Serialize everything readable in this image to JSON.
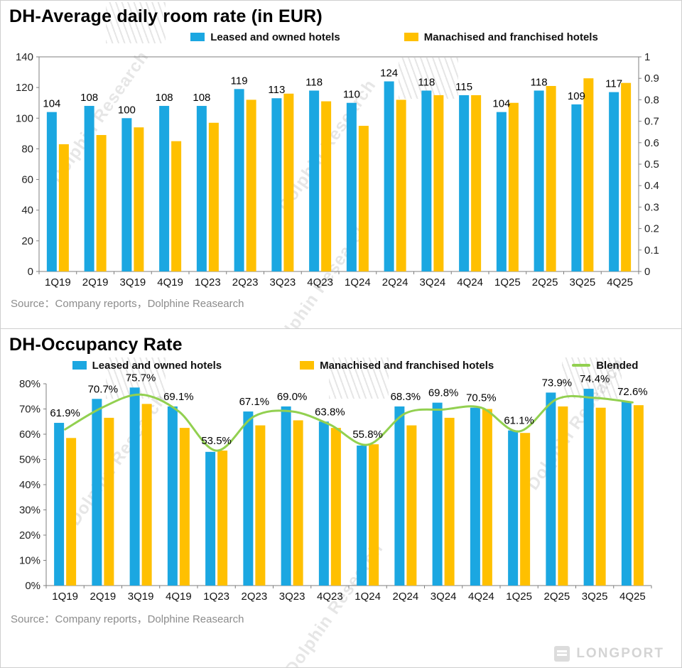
{
  "watermark_text": "Dolphin Research",
  "logo_text": "LONGPORT",
  "chart_data": [
    {
      "type": "bar",
      "title": "DH-Average daily room rate (in EUR)",
      "source": "Source：Company reports，Dolphine Reasearch",
      "categories": [
        "1Q19",
        "2Q19",
        "3Q19",
        "4Q19",
        "1Q23",
        "2Q23",
        "3Q23",
        "4Q23",
        "1Q24",
        "2Q24",
        "3Q24",
        "4Q24",
        "1Q25",
        "2Q25",
        "3Q25",
        "4Q25"
      ],
      "series": [
        {
          "name": "Leased and owned hotels",
          "color": "#1BA7E1",
          "values": [
            104,
            108,
            100,
            108,
            108,
            119,
            113,
            118,
            110,
            124,
            118,
            115,
            104,
            118,
            109,
            117
          ]
        },
        {
          "name": "Manachised and franchised hotels",
          "color": "#FFC000",
          "values": [
            83,
            89,
            94,
            85,
            97,
            112,
            116,
            111,
            95,
            112,
            115,
            115,
            110,
            121,
            126,
            123
          ]
        }
      ],
      "bar_labels": {
        "series": 0,
        "format": "int"
      },
      "left_axis": {
        "min": 0,
        "max": 140,
        "step": 20,
        "format": "int"
      },
      "right_axis": {
        "min": 0,
        "max": 1,
        "step": 0.1
      },
      "frame": "box",
      "grid": false,
      "legend_position": "top"
    },
    {
      "type": "bar+line",
      "title": "DH-Occupancy Rate",
      "source": "Source：Company reports，Dolphine Reasearch",
      "categories": [
        "1Q19",
        "2Q19",
        "3Q19",
        "4Q19",
        "1Q23",
        "2Q23",
        "3Q23",
        "4Q23",
        "1Q24",
        "2Q24",
        "3Q24",
        "4Q24",
        "1Q25",
        "2Q25",
        "3Q25",
        "4Q25"
      ],
      "series": [
        {
          "name": "Leased and owned hotels",
          "color": "#1BA7E1",
          "values": [
            64.5,
            74.0,
            78.5,
            71.0,
            53.0,
            69.0,
            71.0,
            65.0,
            55.5,
            71.0,
            72.5,
            70.5,
            61.5,
            76.5,
            78.0,
            73.0
          ]
        },
        {
          "name": "Manachised and franchised hotels",
          "color": "#FFC000",
          "values": [
            58.5,
            66.5,
            72.0,
            62.5,
            53.5,
            63.5,
            65.5,
            62.5,
            56.0,
            63.5,
            66.5,
            70.0,
            60.5,
            71.0,
            70.5,
            71.5
          ]
        }
      ],
      "line_series": {
        "name": "Blended",
        "color": "#92D050",
        "values": [
          61.9,
          70.7,
          75.7,
          69.1,
          53.5,
          67.1,
          69.0,
          63.8,
          55.8,
          68.3,
          69.8,
          70.5,
          61.1,
          73.9,
          74.4,
          72.6
        ]
      },
      "line_labels": {
        "format": "pct1"
      },
      "left_axis": {
        "min": 0,
        "max": 80,
        "step": 10,
        "format": "pct"
      },
      "frame": "axes",
      "grid": false,
      "legend_position": "top"
    }
  ]
}
